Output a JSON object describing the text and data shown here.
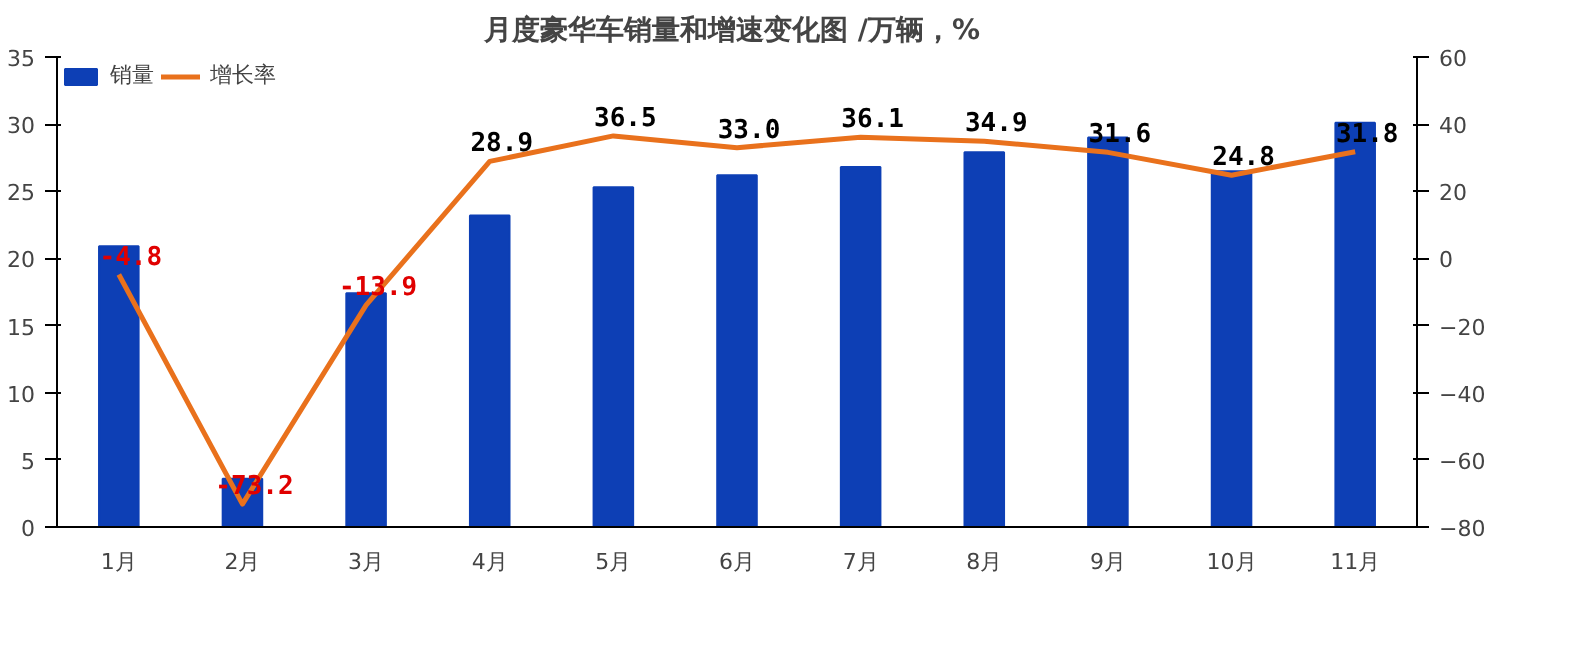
{
  "chart_data": {
    "type": "bar",
    "title": "月度豪华车销量和增速变化图  /万辆，%",
    "categories": [
      "1月",
      "2月",
      "3月",
      "4月",
      "5月",
      "6月",
      "7月",
      "8月",
      "9月",
      "10月",
      "11月"
    ],
    "series": [
      {
        "name": "销量",
        "color": "#0d3fb5",
        "values": [
          20.9,
          3.6,
          17.4,
          23.2,
          25.3,
          26.2,
          26.8,
          27.9,
          29.0,
          26.5,
          30.1
        ]
      },
      {
        "name": "增长率",
        "type": "line",
        "axis": "y2",
        "color": "#e9711c",
        "values": [
          -4.8,
          -73.2,
          -13.9,
          28.9,
          36.5,
          33.0,
          36.1,
          34.9,
          31.6,
          24.8,
          31.8
        ],
        "value_labels": [
          "-4.8",
          "-73.2",
          "-13.9",
          "28.9",
          "36.5",
          "33.0",
          "36.1",
          "34.9",
          "31.6",
          "24.8",
          "31.8"
        ]
      }
    ],
    "ylim": [
      0,
      35
    ],
    "yticks": [
      0,
      5,
      10,
      15,
      20,
      25,
      30,
      35
    ],
    "y2lim": [
      -80,
      60
    ],
    "y2ticks": [
      -80,
      -60,
      -40,
      -20,
      0,
      20,
      40,
      60
    ],
    "grid": false,
    "legend": "top left",
    "marker": "none",
    "line_style": "solid"
  }
}
